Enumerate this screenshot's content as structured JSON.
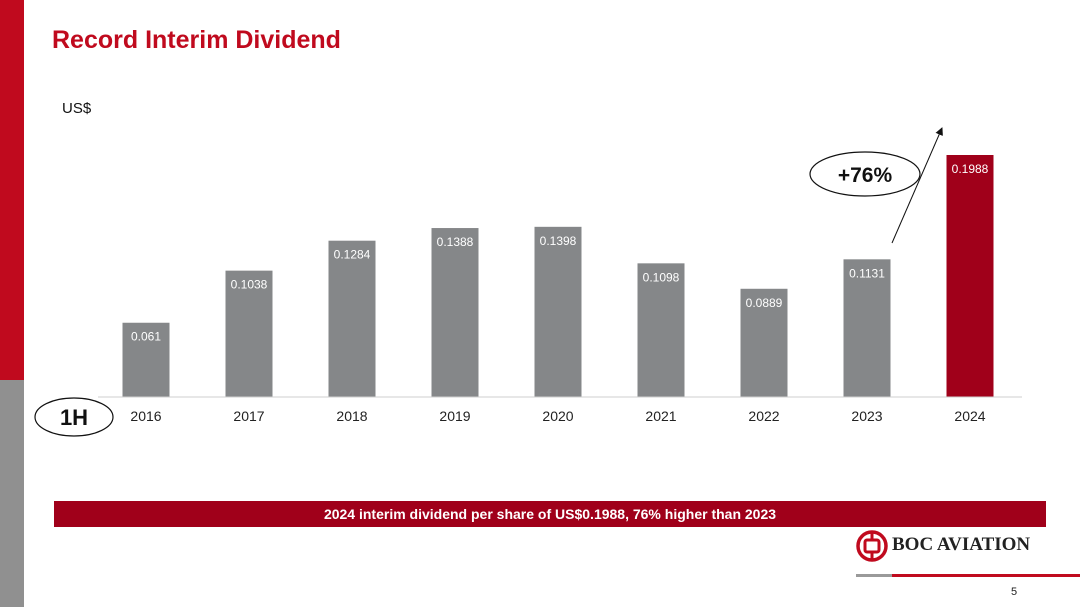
{
  "slide": {
    "title": "Record Interim Dividend",
    "unit_label": "US$",
    "period_label": "1H",
    "growth_label": "+76%",
    "banner_text": "2024 interim dividend per share of US$0.1988, 76% higher than 2023",
    "brand": "BOC AVIATION",
    "page_number": "5"
  },
  "colors": {
    "accent_red": "#c00a1e",
    "bar_gray": "#858789",
    "bar_highlight": "#a0001a",
    "banner_red": "#a0001a"
  },
  "chart_data": {
    "type": "bar",
    "categories": [
      "2016",
      "2017",
      "2018",
      "2019",
      "2020",
      "2021",
      "2022",
      "2023",
      "2024"
    ],
    "values": [
      0.061,
      0.1038,
      0.1284,
      0.1388,
      0.1398,
      0.1098,
      0.0889,
      0.1131,
      0.1988
    ],
    "value_labels": [
      "0.061",
      "0.1038",
      "0.1284",
      "0.1388",
      "0.1398",
      "0.1098",
      "0.0889",
      "0.1131",
      "0.1988"
    ],
    "highlight_category": "2024",
    "ylabel": "US$",
    "ylim": [
      0,
      0.1988
    ],
    "grid": false,
    "legend": "none"
  }
}
